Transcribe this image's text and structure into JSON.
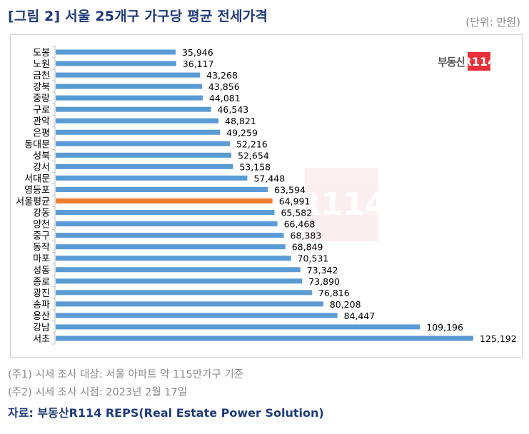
{
  "title": "[그림 2] 서울 25개구 가구당 평균 전세가격",
  "unit_label": "(단위: 만원)",
  "logo": {
    "text": "부동산",
    "badge": "R114",
    "badge_color": "#e8303a"
  },
  "watermark": "R114",
  "notes": [
    "(주1) 시세 조사 대상: 서울 아파트 약 115만가구 기준",
    "(주2) 시세 조사 시점: 2023년 2월 17일"
  ],
  "source": "자료: 부동산R114 REPS(Real Estate Power Solution)",
  "colors": {
    "bar": "#5b9bd5",
    "highlight": "#ed7d31",
    "title": "#1f3a7a"
  },
  "chart_data": {
    "type": "bar",
    "orientation": "horizontal",
    "title": "서울 25개구 가구당 평균 전세가격",
    "xlabel": "",
    "ylabel": "",
    "unit": "만원",
    "categories": [
      "도봉",
      "노원",
      "금천",
      "강북",
      "중랑",
      "구로",
      "관악",
      "은평",
      "동대문",
      "성북",
      "강서",
      "서대문",
      "영등포",
      "서울평균",
      "강동",
      "양천",
      "중구",
      "동작",
      "마포",
      "성동",
      "종로",
      "광진",
      "송파",
      "용산",
      "강남",
      "서초"
    ],
    "values": [
      35946,
      36117,
      43268,
      43856,
      44081,
      46543,
      48821,
      49259,
      52216,
      52654,
      53158,
      57448,
      63594,
      64991,
      65582,
      66468,
      68383,
      68849,
      70531,
      73342,
      73890,
      76816,
      80208,
      84447,
      109196,
      125192
    ],
    "labels": [
      "35,946",
      "36,117",
      "43,268",
      "43,856",
      "44,081",
      "46,543",
      "48,821",
      "49,259",
      "52,216",
      "52,654",
      "53,158",
      "57,448",
      "63,594",
      "64,991",
      "65,582",
      "66,468",
      "68,383",
      "68,849",
      "70,531",
      "73,342",
      "73,890",
      "76,816",
      "80,208",
      "84,447",
      "109,196",
      "125,192"
    ],
    "highlight_category": "서울평균",
    "xlim": [
      0,
      140000
    ],
    "grid": false,
    "legend": "none"
  }
}
